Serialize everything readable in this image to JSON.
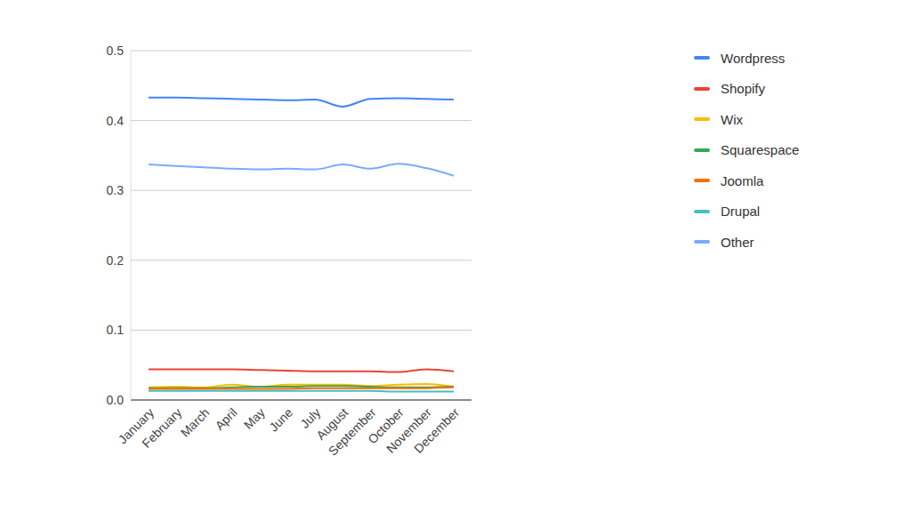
{
  "chart_data": {
    "type": "line",
    "categories": [
      "January",
      "February",
      "March",
      "April",
      "May",
      "June",
      "July",
      "August",
      "September",
      "October",
      "November",
      "December"
    ],
    "series": [
      {
        "name": "Wordpress",
        "color": "#4285f4",
        "values": [
          0.433,
          0.433,
          0.432,
          0.431,
          0.43,
          0.429,
          0.43,
          0.42,
          0.431,
          0.432,
          0.431,
          0.43
        ]
      },
      {
        "name": "Shopify",
        "color": "#ea4335",
        "values": [
          0.044,
          0.044,
          0.044,
          0.044,
          0.043,
          0.042,
          0.041,
          0.041,
          0.041,
          0.04,
          0.044,
          0.041
        ]
      },
      {
        "name": "Wix",
        "color": "#fbbc04",
        "values": [
          0.018,
          0.019,
          0.018,
          0.022,
          0.019,
          0.022,
          0.022,
          0.022,
          0.02,
          0.022,
          0.023,
          0.019
        ]
      },
      {
        "name": "Squarespace",
        "color": "#34a853",
        "values": [
          0.017,
          0.017,
          0.017,
          0.018,
          0.019,
          0.019,
          0.02,
          0.02,
          0.019,
          0.018,
          0.018,
          0.019
        ]
      },
      {
        "name": "Joomla",
        "color": "#ff6d01",
        "values": [
          0.016,
          0.016,
          0.016,
          0.016,
          0.016,
          0.016,
          0.017,
          0.017,
          0.017,
          0.017,
          0.017,
          0.018
        ]
      },
      {
        "name": "Drupal",
        "color": "#46bdc6",
        "values": [
          0.013,
          0.013,
          0.013,
          0.013,
          0.013,
          0.013,
          0.013,
          0.013,
          0.013,
          0.012,
          0.012,
          0.012
        ]
      },
      {
        "name": "Other",
        "color": "#7baaf7",
        "values": [
          0.337,
          0.335,
          0.333,
          0.331,
          0.33,
          0.331,
          0.33,
          0.337,
          0.331,
          0.338,
          0.332,
          0.321
        ]
      }
    ],
    "ylim": [
      0,
      0.5
    ],
    "yticks": [
      {
        "value": 0,
        "label": "0.0"
      },
      0.1,
      0.2,
      0.3,
      0.4,
      0.5
    ],
    "grid": true,
    "legend": "right"
  }
}
